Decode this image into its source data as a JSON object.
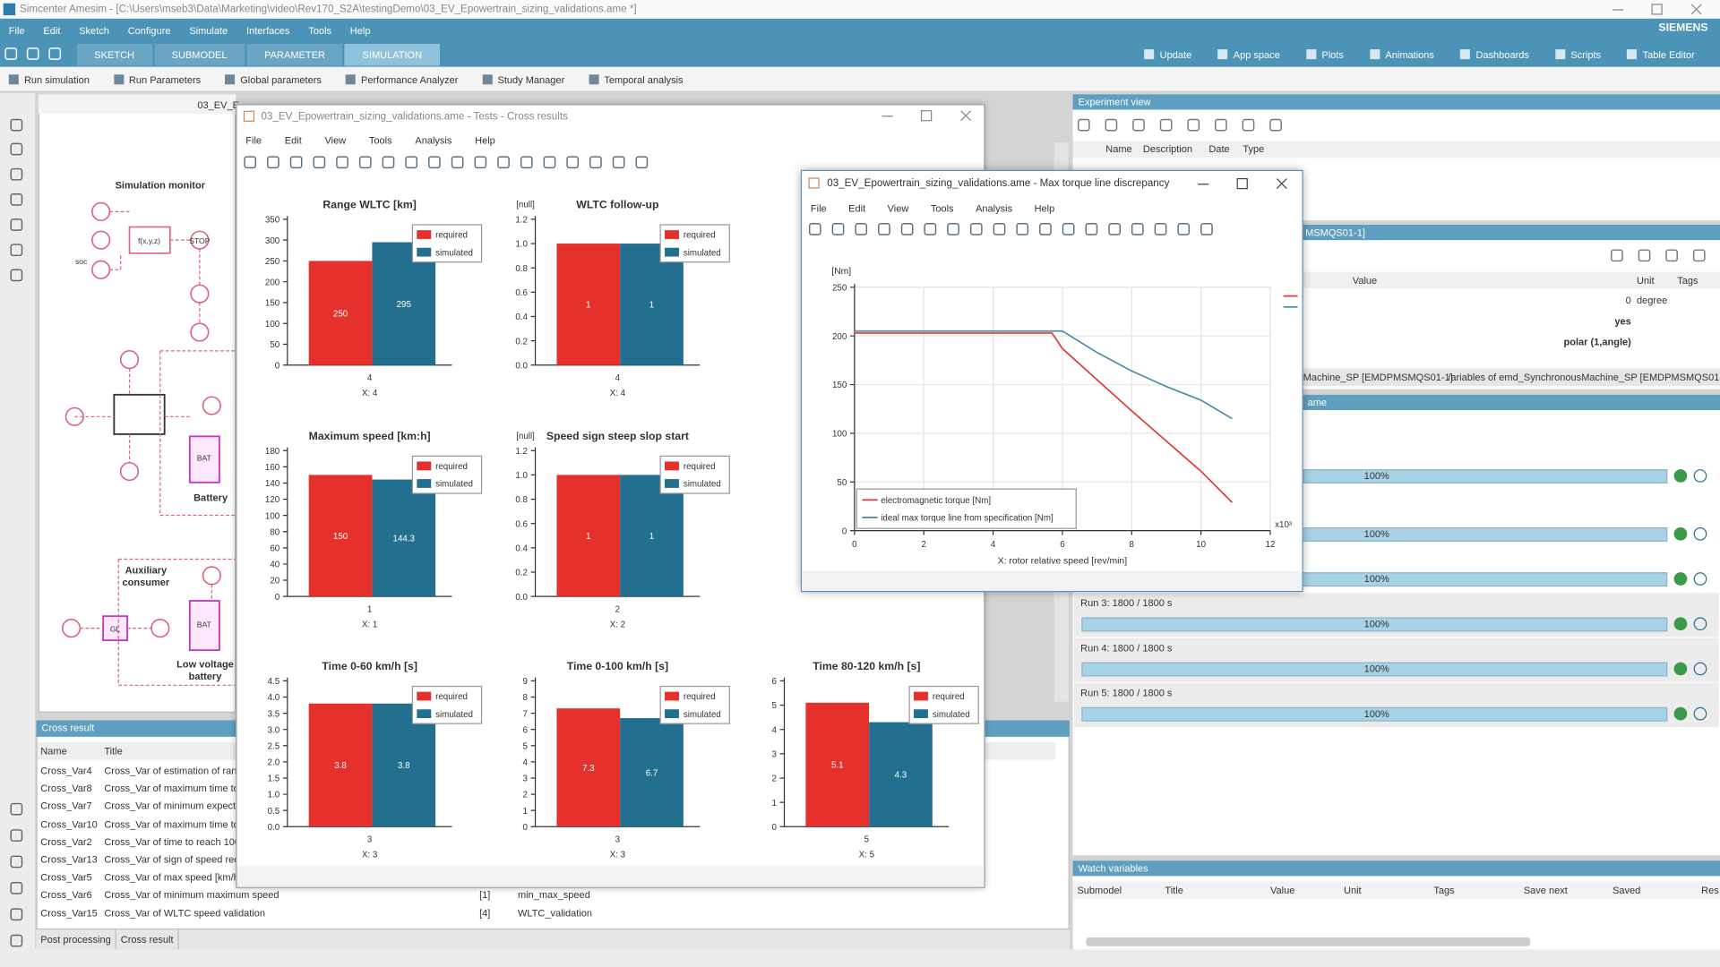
{
  "app": {
    "title": "Simcenter Amesim - [C:\\Users\\mseb3\\Data\\Marketing\\video\\Rev170_S2A\\testingDemo\\03_EV_Epowertrain_sizing_validations.ame *]",
    "brand": "SIEMENS",
    "menu": [
      "File",
      "Edit",
      "Sketch",
      "Configure",
      "Simulate",
      "Interfaces",
      "Tools",
      "Help"
    ],
    "tabs": [
      "SKETCH",
      "SUBMODEL",
      "PARAMETER",
      "SIMULATION"
    ],
    "tools": [
      "Update",
      "App space",
      "Plots",
      "Animations",
      "Dashboards",
      "Scripts",
      "Table Editor"
    ],
    "sim_tools": [
      "Run simulation",
      "Run Parameters",
      "Global parameters",
      "Performance Analyzer",
      "Study Manager",
      "Temporal analysis"
    ]
  },
  "sketch": {
    "tab": "03_EV_E",
    "labels": [
      "Simulation monitor",
      "Battery",
      "Auxiliary consumer",
      "Low voltage battery"
    ],
    "symbols": [
      "f(x,y,z)",
      "STOP",
      "soc",
      "BAT",
      "GL",
      "BAT"
    ]
  },
  "cross_result": {
    "title": "Cross result",
    "columns": [
      "Name",
      "Title"
    ],
    "rows": [
      [
        "Cross_Var4",
        "Cross_Var of estimation of ran"
      ],
      [
        "Cross_Var8",
        "Cross_Var of maximum time to"
      ],
      [
        "Cross_Var7",
        "Cross_Var of minimum expecte"
      ],
      [
        "Cross_Var10",
        "Cross_Var of maximum time to"
      ],
      [
        "Cross_Var2",
        "Cross_Var of time to reach 100"
      ],
      [
        "Cross_Var13",
        "Cross_Var of sign of speed rec"
      ],
      [
        "Cross_Var5",
        "Cross_Var of max speed [km/h"
      ],
      [
        "Cross_Var6",
        "Cross_Var of minimum maximum speed",
        "[1]",
        "min_max_speed"
      ],
      [
        "Cross_Var15",
        "Cross_Var of WLTC speed validation",
        "[4]",
        "WLTC_validation"
      ]
    ],
    "tabs": [
      "Post processing",
      "Cross result"
    ]
  },
  "cross_window": {
    "title": "03_EV_Epowertrain_sizing_validations.ame - Tests - Cross results",
    "menu": [
      "File",
      "Edit",
      "View",
      "Tools",
      "Analysis",
      "Help"
    ],
    "charts": [
      {
        "type": "bar",
        "title": "Range WLTC [km]",
        "categories": [
          "4"
        ],
        "xlabel": "X: 4",
        "series": [
          {
            "name": "required",
            "color": "#e5302b",
            "values": [
              250
            ]
          },
          {
            "name": "simulated",
            "color": "#226f8f",
            "values": [
              295
            ]
          }
        ],
        "ylim": [
          0,
          350
        ],
        "yticks": [
          0,
          50,
          100,
          150,
          200,
          250,
          300,
          350
        ]
      },
      {
        "type": "bar",
        "title": "WLTC follow-up",
        "ylabel": "[null]",
        "categories": [
          "4"
        ],
        "xlabel": "X: 4",
        "series": [
          {
            "name": "required",
            "color": "#e5302b",
            "values": [
              1
            ]
          },
          {
            "name": "simulated",
            "color": "#226f8f",
            "values": [
              1
            ]
          }
        ],
        "ylim": [
          0,
          1.2
        ],
        "yticks": [
          {
            "value": 0,
            "label": "0.0"
          },
          0.2,
          0.4,
          0.6,
          0.8,
          {
            "value": 1,
            "label": "1.0"
          },
          1.2
        ]
      },
      {
        "type": "bar",
        "title": "Maximum speed [km:h]",
        "categories": [
          "1"
        ],
        "xlabel": "X: 1",
        "series": [
          {
            "name": "required",
            "color": "#e5302b",
            "values": [
              150
            ]
          },
          {
            "name": "simulated",
            "color": "#226f8f",
            "values": [
              144.3
            ]
          }
        ],
        "ylim": [
          0,
          180
        ],
        "yticks": [
          0,
          20,
          40,
          60,
          80,
          100,
          120,
          140,
          160,
          180
        ]
      },
      {
        "type": "bar",
        "title": "Speed sign steep slop start",
        "ylabel": "[null]",
        "categories": [
          "2"
        ],
        "xlabel": "X: 2",
        "series": [
          {
            "name": "required",
            "color": "#e5302b",
            "values": [
              1
            ]
          },
          {
            "name": "simulated",
            "color": "#226f8f",
            "values": [
              1
            ]
          }
        ],
        "ylim": [
          0,
          1.2
        ],
        "yticks": [
          {
            "value": 0,
            "label": "0.0"
          },
          0.2,
          0.4,
          0.6,
          0.8,
          {
            "value": 1,
            "label": "1.0"
          },
          1.2
        ]
      },
      {
        "type": "bar",
        "title": "Time 0-60 km/h [s]",
        "categories": [
          "3"
        ],
        "xlabel": "X: 3",
        "series": [
          {
            "name": "required",
            "color": "#e5302b",
            "values": [
              3.8
            ]
          },
          {
            "name": "simulated",
            "color": "#226f8f",
            "values": [
              3.8
            ]
          }
        ],
        "ylim": [
          0,
          4.5
        ],
        "yticks": [
          {
            "value": 0,
            "label": "0.0"
          },
          0.5,
          {
            "value": 1,
            "label": "1.0"
          },
          1.5,
          {
            "value": 2,
            "label": "2.0"
          },
          2.5,
          {
            "value": 3,
            "label": "3.0"
          },
          3.5,
          {
            "value": 4,
            "label": "4.0"
          },
          4.5
        ]
      },
      {
        "type": "bar",
        "title": "Time 0-100 km/h [s]",
        "categories": [
          "3"
        ],
        "xlabel": "X: 3",
        "series": [
          {
            "name": "required",
            "color": "#e5302b",
            "values": [
              7.3
            ]
          },
          {
            "name": "simulated",
            "color": "#226f8f",
            "values": [
              6.7
            ]
          }
        ],
        "ylim": [
          0,
          9
        ],
        "yticks": [
          0,
          1,
          2,
          3,
          4,
          5,
          6,
          7,
          8,
          9
        ]
      },
      {
        "type": "bar",
        "title": "Time 80-120 km/h [s]",
        "categories": [
          "5"
        ],
        "xlabel": "X: 5",
        "series": [
          {
            "name": "required",
            "color": "#e5302b",
            "values": [
              5.1
            ]
          },
          {
            "name": "simulated",
            "color": "#226f8f",
            "values": [
              4.3
            ]
          }
        ],
        "ylim": [
          0,
          6
        ],
        "yticks": [
          0,
          1,
          2,
          3,
          4,
          5,
          6
        ]
      }
    ]
  },
  "torque_window": {
    "title": "03_EV_Epowertrain_sizing_validations.ame - Max torque line discrepancy",
    "menu": [
      "File",
      "Edit",
      "View",
      "Tools",
      "Analysis",
      "Help"
    ],
    "chart": {
      "type": "line",
      "ylabel": "[Nm]",
      "xlabel": "X: rotor relative speed [rev/min]",
      "x_multiplier": "x10³",
      "grid": true,
      "xlim": [
        0,
        12
      ],
      "xticks": [
        0,
        2,
        4,
        6,
        8,
        10,
        12
      ],
      "ylim": [
        0,
        250
      ],
      "yticks": [
        0,
        50,
        100,
        150,
        200,
        250
      ],
      "series": [
        {
          "name": "electromagnetic torque [Nm]",
          "color": "#e03a3a",
          "x": [
            0,
            5.7,
            6,
            7,
            8,
            9,
            10,
            10.9
          ],
          "values": [
            203,
            203,
            187,
            155,
            123,
            92,
            61,
            29
          ]
        },
        {
          "name": "ideal max torque line from specification [Nm]",
          "color": "#4f8fa8",
          "x": [
            0,
            6,
            7,
            8,
            9,
            10,
            10.9
          ],
          "values": [
            205,
            205,
            183,
            164,
            148,
            134,
            115
          ]
        }
      ]
    }
  },
  "experiment_view": {
    "title": "Experiment view",
    "columns": [
      "Name",
      "Description",
      "Date",
      "Type"
    ]
  },
  "parameters": {
    "title": "MSMQS01-1]",
    "columns": [
      "Value",
      "Unit",
      "Tags"
    ],
    "rows": [
      [
        "0",
        "degree"
      ],
      [
        "yes"
      ],
      [
        "polar (1,angle)"
      ]
    ],
    "tabs": [
      "Machine_SP [EMDPMSMQS01-1]",
      "/ariables of emd_SynchronousMachine_SP [EMDPMSMQS01-1]"
    ]
  },
  "runs": {
    "title": "ame",
    "progress": [
      "100%",
      "100%",
      "100%",
      "100%",
      "100%",
      "100%"
    ],
    "labels": [
      "Run 3: 1800 / 1800 s",
      "Run 4: 1800 / 1800 s",
      "Run 5: 1800 / 1800 s"
    ]
  },
  "watch": {
    "title": "Watch variables",
    "columns": [
      "Submodel",
      "Title",
      "Value",
      "Unit",
      "Tags",
      "Save next",
      "Saved",
      "Res"
    ]
  }
}
